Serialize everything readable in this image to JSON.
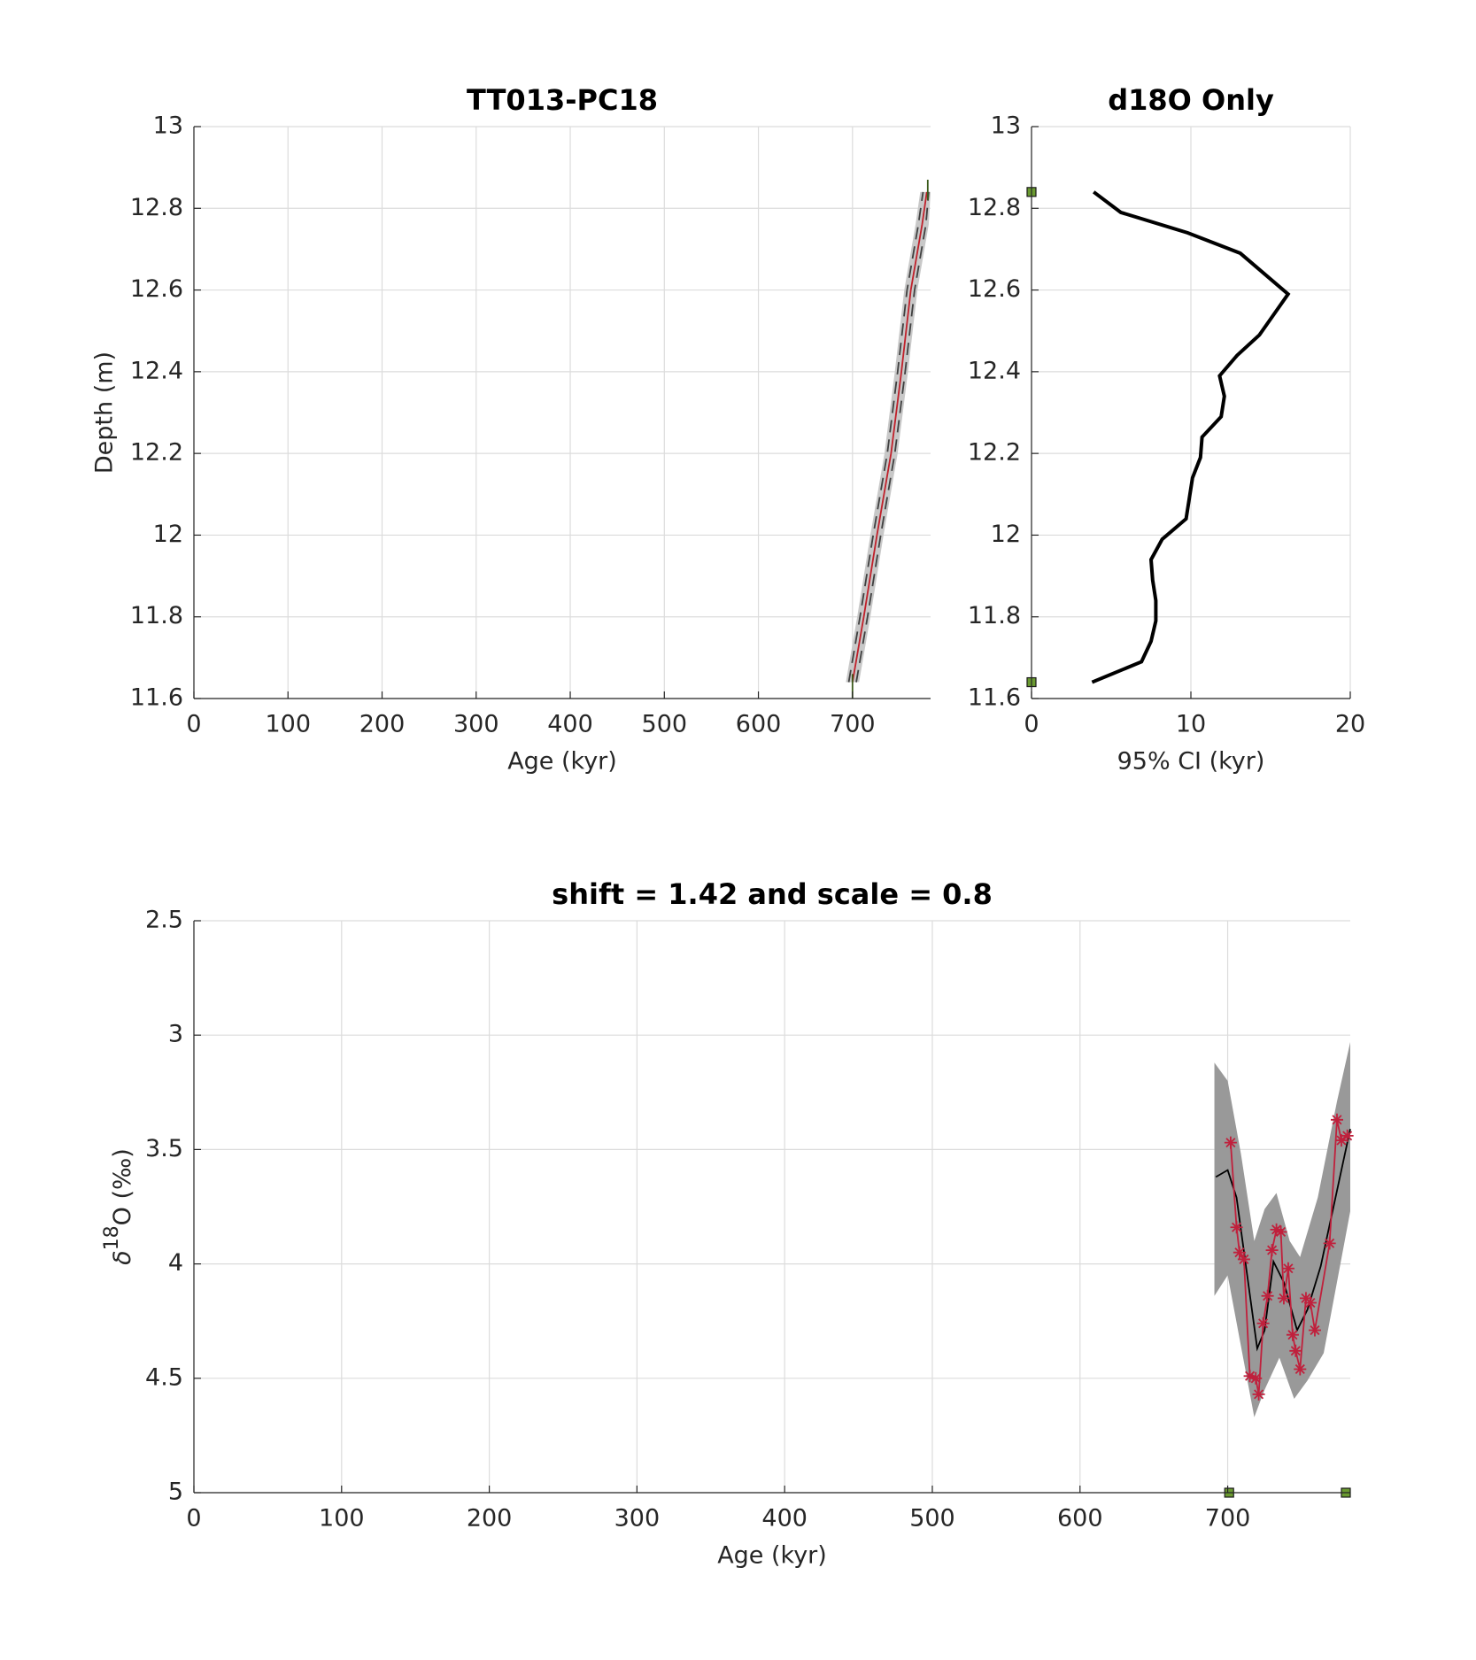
{
  "chart_data": [
    {
      "type": "line",
      "title": "TT013-PC18",
      "xlabel": "Age (kyr)",
      "ylabel": "Depth (m)",
      "xlim": [
        0,
        783
      ],
      "ylim": [
        11.6,
        13
      ],
      "xticks": [
        0,
        100,
        200,
        300,
        400,
        500,
        600,
        700
      ],
      "yticks": [
        11.6,
        11.8,
        12,
        12.2,
        12.4,
        12.6,
        12.8,
        13
      ],
      "grid": true,
      "bands": [
        {
          "color": "#c8c8c8",
          "x": [
            693,
            705,
            719,
            734,
            745,
            755,
            767,
            772
          ],
          "y": [
            11.64,
            11.8,
            12.0,
            12.2,
            12.4,
            12.6,
            12.76,
            12.84
          ],
          "x2": [
            707,
            719,
            733,
            748,
            759,
            769,
            781,
            783
          ],
          "y2": [
            11.64,
            11.8,
            12.0,
            12.2,
            12.4,
            12.6,
            12.76,
            12.84
          ]
        }
      ],
      "series": [
        {
          "color": "#404040",
          "style": "dashed",
          "x": [
            696,
            708,
            722,
            737,
            748,
            758,
            770,
            775
          ],
          "y": [
            11.64,
            11.8,
            12.0,
            12.2,
            12.4,
            12.6,
            12.76,
            12.84
          ]
        },
        {
          "color": "#404040",
          "style": "dashed",
          "x": [
            704,
            716,
            730,
            745,
            756,
            766,
            778,
            781
          ],
          "y": [
            11.64,
            11.8,
            12.0,
            12.2,
            12.4,
            12.6,
            12.76,
            12.84
          ]
        },
        {
          "color": "#c0202a",
          "style": "solid",
          "x": [
            700,
            712,
            726,
            741,
            752,
            762,
            774,
            779
          ],
          "y": [
            11.64,
            11.8,
            12.0,
            12.2,
            12.4,
            12.6,
            12.76,
            12.84
          ]
        },
        {
          "color": "#3a5a1a",
          "style": "solid",
          "x": [
            700,
            700
          ],
          "y": [
            11.6,
            11.66
          ]
        },
        {
          "color": "#3a5a1a",
          "style": "solid",
          "x": [
            780,
            780
          ],
          "y": [
            12.82,
            12.87
          ]
        }
      ]
    },
    {
      "type": "line",
      "title": "d18O Only",
      "xlabel": "95% CI (kyr)",
      "xlim": [
        0,
        20
      ],
      "ylim": [
        11.6,
        13
      ],
      "xticks": [
        0,
        10,
        20
      ],
      "yticks": [
        11.6,
        11.8,
        12,
        12.2,
        12.4,
        12.6,
        12.8,
        13
      ],
      "grid": true,
      "series": [
        {
          "color": "#000000",
          "style": "thick",
          "x": [
            3.9,
            5.6,
            9.8,
            13.1,
            16.1,
            15.2,
            14.3,
            12.9,
            11.8,
            12.1,
            11.9,
            10.7,
            10.6,
            10.1,
            9.9,
            9.7,
            8.2,
            7.5,
            7.6,
            7.8,
            7.8,
            7.5,
            6.9,
            3.8
          ],
          "y": [
            12.84,
            12.79,
            12.74,
            12.69,
            12.59,
            12.54,
            12.49,
            12.44,
            12.39,
            12.34,
            12.29,
            12.24,
            12.19,
            12.14,
            12.09,
            12.04,
            11.99,
            11.94,
            11.89,
            11.84,
            11.79,
            11.74,
            11.69,
            11.64
          ]
        },
        {
          "color": "#6a9a30",
          "marker": "square",
          "x": [
            0,
            0
          ],
          "y": [
            12.84,
            11.64
          ]
        }
      ]
    },
    {
      "type": "line",
      "title": "shift = 1.42 and scale = 0.8",
      "xlabel": "Age (kyr)",
      "ylabel_parts": [
        "δ",
        "18",
        "O (‰)"
      ],
      "xlim": [
        0,
        783
      ],
      "ylim": [
        5,
        2.5
      ],
      "xticks": [
        0,
        100,
        200,
        300,
        400,
        500,
        600,
        700
      ],
      "yticks": [
        2.5,
        3,
        3.5,
        4,
        4.5,
        5
      ],
      "grid": true,
      "bands": [
        {
          "color": "#999999",
          "x": [
            691,
            700,
            709,
            718,
            725,
            733,
            742,
            749,
            761,
            774,
            783
          ],
          "y": [
            3.12,
            3.2,
            3.52,
            3.9,
            3.76,
            3.69,
            3.9,
            3.97,
            3.71,
            3.29,
            3.03
          ],
          "x2": [
            691,
            700,
            709,
            718,
            725,
            735,
            745,
            754,
            765,
            774,
            783
          ],
          "y2": [
            4.14,
            4.05,
            4.36,
            4.67,
            4.55,
            4.41,
            4.59,
            4.51,
            4.39,
            4.08,
            3.77
          ]
        }
      ],
      "series": [
        {
          "color": "#000000",
          "style": "solid",
          "x": [
            692,
            700,
            706,
            713,
            720,
            725,
            731,
            738,
            747,
            754,
            763,
            773,
            783
          ],
          "y": [
            3.62,
            3.59,
            3.71,
            4.04,
            4.37,
            4.29,
            3.99,
            4.08,
            4.29,
            4.2,
            4.01,
            3.71,
            3.41
          ]
        },
        {
          "color": "#c0203c",
          "style": "solid",
          "marker": "star",
          "x": [
            702,
            706,
            708,
            711,
            715,
            719,
            721,
            724,
            727,
            730,
            733,
            736,
            738,
            741,
            744,
            746,
            749,
            753,
            756,
            759,
            769,
            774,
            777,
            781
          ],
          "y": [
            3.47,
            3.84,
            3.95,
            3.98,
            4.49,
            4.5,
            4.57,
            4.26,
            4.14,
            3.94,
            3.85,
            3.86,
            4.15,
            4.02,
            4.31,
            4.38,
            4.46,
            4.15,
            4.17,
            4.29,
            3.91,
            3.37,
            3.46,
            3.44
          ]
        },
        {
          "color": "#6a9a30",
          "marker": "square",
          "x": [
            701,
            780
          ],
          "y": [
            5,
            5
          ]
        }
      ]
    }
  ]
}
